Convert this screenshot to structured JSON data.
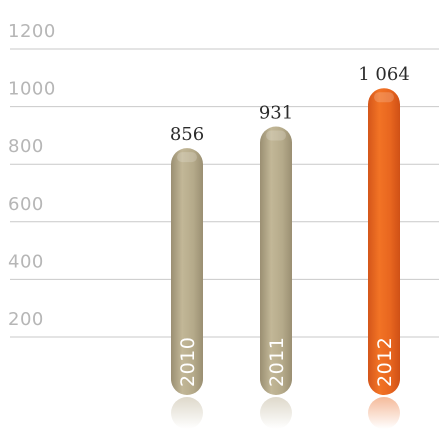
{
  "chart_data": {
    "type": "bar",
    "categories": [
      "2010",
      "2011",
      "2012"
    ],
    "values": [
      856,
      931,
      1064
    ],
    "value_labels": [
      "856",
      "931",
      "1 064"
    ],
    "y_ticks": [
      "200",
      "400",
      "600",
      "800",
      "1000",
      "1200"
    ],
    "ylim": [
      0,
      1200
    ],
    "grid": true,
    "bar_colors": [
      "#b6aa8b",
      "#b6aa8b",
      "#e8661f"
    ],
    "title": "",
    "xlabel": "",
    "ylabel": ""
  }
}
